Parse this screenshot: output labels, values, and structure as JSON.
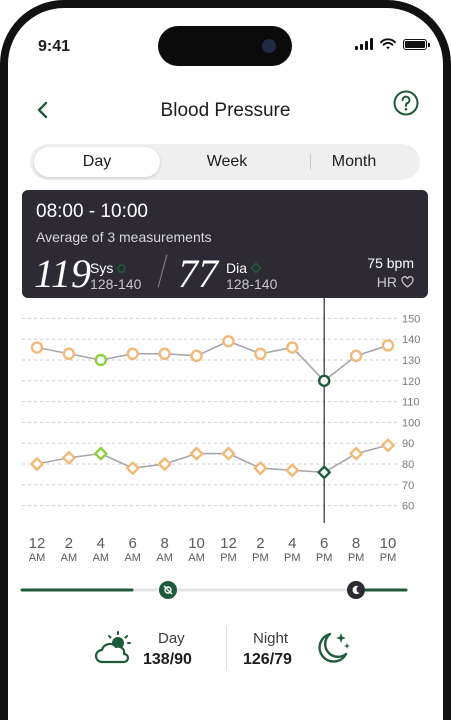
{
  "status": {
    "time": "9:41"
  },
  "header": {
    "title": "Blood Pressure"
  },
  "tabs": [
    {
      "label": "Day",
      "active": true
    },
    {
      "label": "Week",
      "active": false
    },
    {
      "label": "Month",
      "active": false
    }
  ],
  "card": {
    "range": "08:00 - 10:00",
    "average": "Average of 3 measurements",
    "sys_value": "119",
    "sys_label": "Sys",
    "sys_range": "128-140",
    "dia_value": "77",
    "dia_label": "Dia",
    "dia_range": "128-140",
    "hr_value": "75 bpm",
    "hr_label": "HR"
  },
  "colors": {
    "accent": "#1e5b3b",
    "orange": "#f2b877",
    "green_light": "#8dcf3f",
    "line": "#a7a7ab",
    "grid": "#cfcfd3",
    "card_bg": "#2d2a33"
  },
  "chart_data": {
    "type": "line",
    "ylim": [
      55,
      155
    ],
    "y_ticks": [
      60,
      70,
      80,
      90,
      100,
      110,
      120,
      130,
      140,
      150
    ],
    "x": [
      "12 AM",
      "2 AM",
      "4 AM",
      "6 AM",
      "8 AM",
      "10 AM",
      "12 PM",
      "2 PM",
      "4 PM",
      "6 PM",
      "8 PM",
      "10 PM"
    ],
    "x_labels": [
      {
        "hour": "12",
        "ampm": "AM"
      },
      {
        "hour": "2",
        "ampm": "AM"
      },
      {
        "hour": "4",
        "ampm": "AM"
      },
      {
        "hour": "6",
        "ampm": "AM"
      },
      {
        "hour": "8",
        "ampm": "AM"
      },
      {
        "hour": "10",
        "ampm": "AM"
      },
      {
        "hour": "12",
        "ampm": "PM"
      },
      {
        "hour": "2",
        "ampm": "PM"
      },
      {
        "hour": "4",
        "ampm": "PM"
      },
      {
        "hour": "6",
        "ampm": "PM"
      },
      {
        "hour": "8",
        "ampm": "PM"
      },
      {
        "hour": "10",
        "ampm": "PM"
      }
    ],
    "series": [
      {
        "marker": "circle",
        "values": [
          136,
          133,
          130,
          133,
          133,
          132,
          139,
          133,
          136,
          120,
          132,
          137
        ],
        "highlight_index": 2,
        "selected_index": 9
      },
      {
        "marker": "diamond",
        "values": [
          80,
          83,
          85,
          78,
          80,
          85,
          85,
          78,
          77,
          76,
          85,
          89
        ],
        "highlight_index": 2,
        "selected_index": 9
      }
    ],
    "selected_index": 9
  },
  "slider": {
    "start_fraction": 0.38,
    "end_fraction": 0.89
  },
  "summary": {
    "day_label": "Day",
    "day_value": "138/90",
    "night_label": "Night",
    "night_value": "126/79"
  }
}
